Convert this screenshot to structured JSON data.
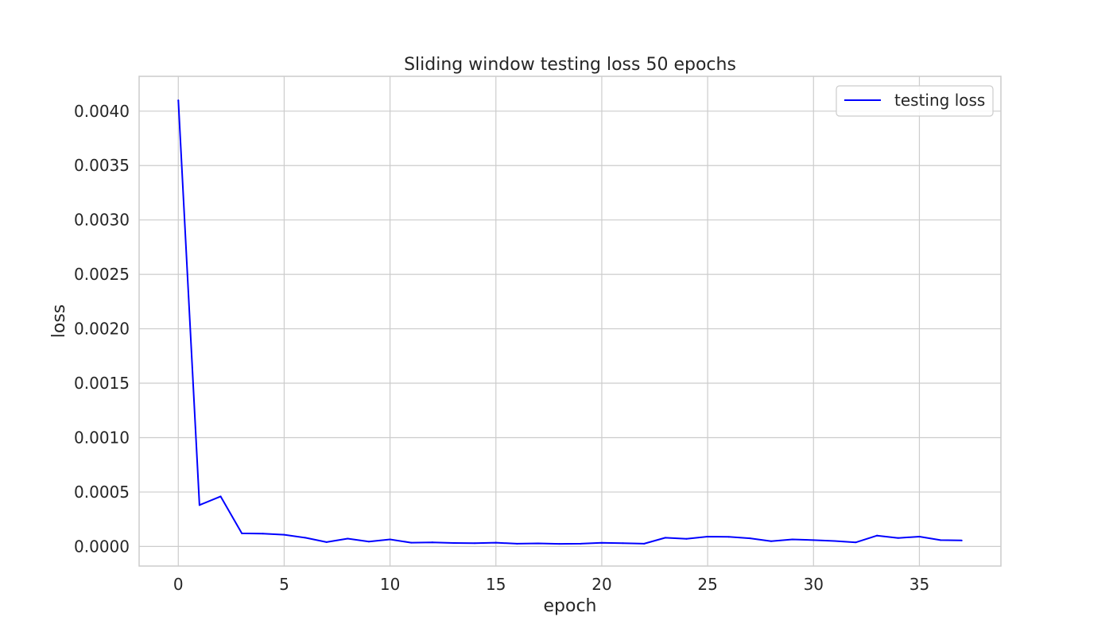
{
  "chart_data": {
    "type": "line",
    "title": "Sliding window testing loss 50 epochs",
    "xlabel": "epoch",
    "ylabel": "loss",
    "xlim": [
      -1.85,
      38.85
    ],
    "ylim": [
      -0.00018,
      0.00432
    ],
    "xticks": [
      0,
      5,
      10,
      15,
      20,
      25,
      30,
      35
    ],
    "yticks": [
      0.0,
      0.0005,
      0.001,
      0.0015,
      0.002,
      0.0025,
      0.003,
      0.0035,
      0.004
    ],
    "ytick_labels": [
      "0.0000",
      "0.0005",
      "0.0010",
      "0.0015",
      "0.0020",
      "0.0025",
      "0.0030",
      "0.0035",
      "0.0040"
    ],
    "grid": true,
    "legend_position": "top-right",
    "series": [
      {
        "name": "testing loss",
        "color": "#0000ff",
        "x": [
          0,
          1,
          2,
          3,
          4,
          5,
          6,
          7,
          8,
          9,
          10,
          11,
          12,
          13,
          14,
          15,
          16,
          17,
          18,
          19,
          20,
          21,
          22,
          23,
          24,
          25,
          26,
          27,
          28,
          29,
          30,
          31,
          32,
          33,
          34,
          35,
          36,
          37
        ],
        "y": [
          0.0041,
          0.00038,
          0.00046,
          0.00012,
          0.000118,
          0.000108,
          8e-05,
          4e-05,
          7.2e-05,
          4.5e-05,
          6.5e-05,
          3.5e-05,
          3.8e-05,
          3.2e-05,
          3e-05,
          3.5e-05,
          2.5e-05,
          2.8e-05,
          2.4e-05,
          2.5e-05,
          3.3e-05,
          3e-05,
          2.5e-05,
          8e-05,
          7e-05,
          9e-05,
          8.8e-05,
          7.5e-05,
          4.8e-05,
          6.5e-05,
          5.8e-05,
          5e-05,
          3.8e-05,
          0.0001,
          7.8e-05,
          9e-05,
          5.8e-05,
          5.5e-05
        ]
      }
    ]
  }
}
